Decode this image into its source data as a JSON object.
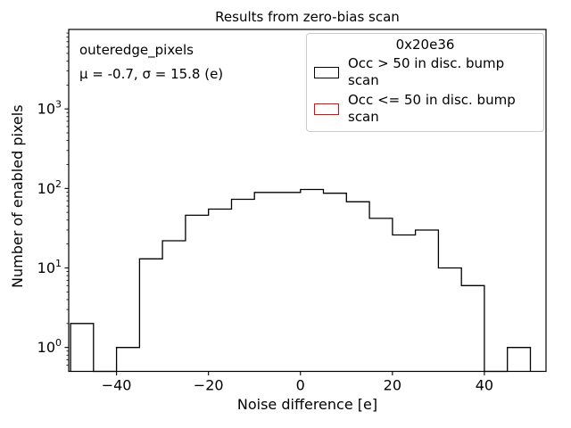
{
  "title": "Results from zero-bias scan",
  "annotation": {
    "line1": "outeredge_pixels",
    "line2": "μ = -0.7, σ = 15.8 (e)"
  },
  "legend": {
    "title": "0x20e36",
    "entries": [
      {
        "label": "Occ > 50 in disc. bump scan",
        "color": "#000000"
      },
      {
        "label": "Occ <= 50 in disc. bump scan",
        "color": "#ff0000"
      }
    ]
  },
  "chart_data": {
    "type": "bar",
    "histtype": "step-histogram",
    "yscale": "log",
    "title": "Results from zero-bias scan",
    "xlabel": "Noise difference [e]",
    "ylabel": "Number of enabled pixels",
    "bin_edges": [
      -50,
      -45,
      -40,
      -35,
      -30,
      -25,
      -20,
      -15,
      -10,
      -5,
      0,
      5,
      10,
      15,
      20,
      25,
      30,
      35,
      40,
      45,
      50
    ],
    "series": [
      {
        "name": "Occ > 50 in disc. bump scan",
        "color": "#000000",
        "counts": [
          2,
          0,
          1,
          13,
          22,
          46,
          55,
          73,
          89,
          89,
          97,
          87,
          68,
          42,
          26,
          30,
          10,
          6,
          0,
          1
        ]
      },
      {
        "name": "Occ <= 50 in disc. bump scan",
        "color": "#ff0000",
        "counts": [
          0,
          0,
          0,
          0,
          0,
          0,
          0,
          0,
          0,
          0,
          0,
          0,
          0,
          0,
          0,
          0,
          0,
          0,
          0,
          0
        ]
      }
    ],
    "xlim": [
      -50.4,
      53.4
    ],
    "ylim": [
      0.5,
      10000
    ],
    "xticks": [
      -40,
      -20,
      0,
      20,
      40
    ],
    "yticks": [
      {
        "value": 1,
        "base": "10",
        "exp": "0"
      },
      {
        "value": 10,
        "base": "10",
        "exp": "1"
      },
      {
        "value": 100,
        "base": "10",
        "exp": "2"
      },
      {
        "value": 1000,
        "base": "10",
        "exp": "3"
      }
    ],
    "grid": false,
    "legend_position": "upper right"
  }
}
